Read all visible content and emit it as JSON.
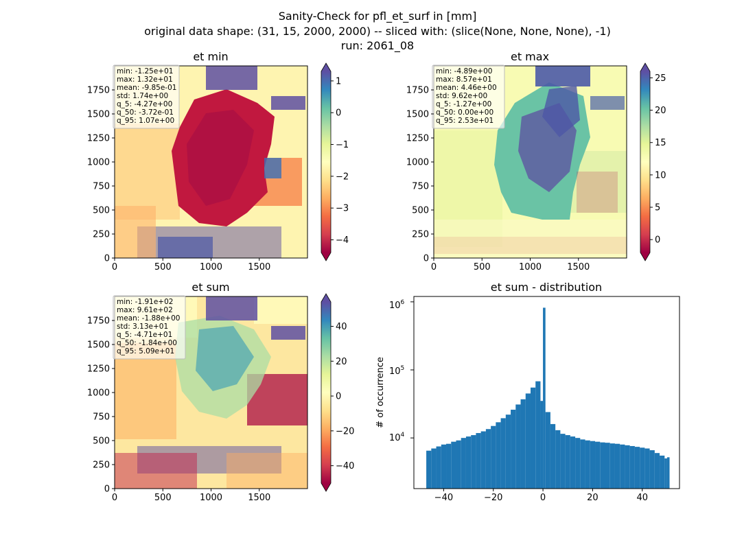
{
  "figure": {
    "suptitle_lines": [
      "Sanity-Check for pfl_et_surf in [mm]",
      "original data shape: (31, 15, 2000, 2000) -- sliced with: (slice(None, None, None), -1)",
      "run: 2061_08"
    ]
  },
  "panels": {
    "et_min": {
      "title": "et min",
      "stats": [
        "min: -1.25e+01",
        "max: 1.32e+01",
        "mean: -9.85e-01",
        "std: 1.74e+00",
        "q_5: -4.27e+00",
        "q_50: -3.72e-01",
        "q_95: 1.07e+00"
      ],
      "xticks": [
        "0",
        "500",
        "1000",
        "1500"
      ],
      "yticks": [
        "0",
        "250",
        "500",
        "750",
        "1000",
        "1250",
        "1500",
        "1750"
      ],
      "colorbar": {
        "min": -4.4,
        "max": 1.3,
        "ticks": [
          "1",
          "0",
          "−1",
          "−2",
          "−3",
          "−4"
        ],
        "tick_values": [
          1,
          0,
          -1,
          -2,
          -3,
          -4
        ]
      }
    },
    "et_max": {
      "title": "et max",
      "stats": [
        "min: -4.89e+00",
        "max: 8.57e+01",
        "mean: 4.46e+00",
        "std: 9.62e+00",
        "q_5: -1.27e+00",
        "q_50: 0.00e+00",
        "q_95: 2.53e+01"
      ],
      "xticks": [
        "0",
        "500",
        "1000",
        "1500"
      ],
      "yticks": [
        "0",
        "250",
        "500",
        "750",
        "1000",
        "1250",
        "1500",
        "1750"
      ],
      "colorbar": {
        "min": -2.0,
        "max": 26.0,
        "ticks": [
          "25",
          "20",
          "15",
          "10",
          "5",
          "0"
        ],
        "tick_values": [
          25,
          20,
          15,
          10,
          5,
          0
        ]
      }
    },
    "et_sum": {
      "title": "et sum",
      "stats": [
        "min: -1.91e+02",
        "max: 9.61e+02",
        "mean: -1.88e+00",
        "std: 3.13e+01",
        "q_5: -4.71e+01",
        "q_50: -1.84e+00",
        "q_95: 5.09e+01"
      ],
      "xticks": [
        "0",
        "500",
        "1000",
        "1500"
      ],
      "yticks": [
        "0",
        "250",
        "500",
        "750",
        "1000",
        "1250",
        "1500",
        "1750"
      ],
      "colorbar": {
        "min": -50,
        "max": 54,
        "ticks": [
          "40",
          "20",
          "0",
          "−20",
          "−40"
        ],
        "tick_values": [
          40,
          20,
          0,
          -20,
          -40
        ]
      }
    },
    "distribution": {
      "title": "et sum - distribution",
      "ylabel": "# of occurrence",
      "xticks": [
        "−40",
        "−20",
        "0",
        "20",
        "40"
      ],
      "ytick_labels": {
        "e4": "10",
        "e5": "10",
        "e6": "10",
        "e4_exp": "4",
        "e5_exp": "5",
        "e6_exp": "6"
      },
      "bar_color": "#1f77b4"
    }
  },
  "chart_data": [
    {
      "type": "heatmap",
      "title": "et min",
      "colormap": "Spectral",
      "xlim": [
        0,
        2000
      ],
      "ylim": [
        0,
        2000
      ],
      "color_range": [
        -4.4,
        1.3
      ]
    },
    {
      "type": "heatmap",
      "title": "et max",
      "colormap": "Spectral",
      "xlim": [
        0,
        2000
      ],
      "ylim": [
        0,
        2000
      ],
      "color_range": [
        -2.0,
        26.0
      ]
    },
    {
      "type": "heatmap",
      "title": "et sum",
      "colormap": "Spectral",
      "xlim": [
        0,
        2000
      ],
      "ylim": [
        0,
        2000
      ],
      "color_range": [
        -50,
        54
      ]
    },
    {
      "type": "bar",
      "title": "et sum - distribution",
      "ylabel": "# of occurrence",
      "y_scale": "log",
      "xlim": [
        -52,
        55
      ],
      "ylim": [
        1800,
        1200000
      ],
      "bins": [
        {
          "x": -47,
          "count": 6500
        },
        {
          "x": -45,
          "count": 7000
        },
        {
          "x": -43,
          "count": 7500
        },
        {
          "x": -41,
          "count": 8000
        },
        {
          "x": -39,
          "count": 8200
        },
        {
          "x": -37,
          "count": 8800
        },
        {
          "x": -35,
          "count": 9200
        },
        {
          "x": -33,
          "count": 10000
        },
        {
          "x": -31,
          "count": 10500
        },
        {
          "x": -29,
          "count": 11000
        },
        {
          "x": -27,
          "count": 11800
        },
        {
          "x": -25,
          "count": 12500
        },
        {
          "x": -23,
          "count": 13500
        },
        {
          "x": -21,
          "count": 15000
        },
        {
          "x": -19,
          "count": 17000
        },
        {
          "x": -17,
          "count": 19500
        },
        {
          "x": -15,
          "count": 22000
        },
        {
          "x": -13,
          "count": 26000
        },
        {
          "x": -11,
          "count": 31000
        },
        {
          "x": -9,
          "count": 37000
        },
        {
          "x": -7,
          "count": 45000
        },
        {
          "x": -5,
          "count": 55000
        },
        {
          "x": -3,
          "count": 68000
        },
        {
          "x": -1,
          "count": 35000
        },
        {
          "x": 0,
          "count": 820000
        },
        {
          "x": 1,
          "count": 24000
        },
        {
          "x": 3,
          "count": 16000
        },
        {
          "x": 5,
          "count": 13000
        },
        {
          "x": 7,
          "count": 11500
        },
        {
          "x": 9,
          "count": 11000
        },
        {
          "x": 11,
          "count": 10500
        },
        {
          "x": 13,
          "count": 10000
        },
        {
          "x": 15,
          "count": 9500
        },
        {
          "x": 17,
          "count": 9200
        },
        {
          "x": 19,
          "count": 9000
        },
        {
          "x": 21,
          "count": 8800
        },
        {
          "x": 23,
          "count": 8600
        },
        {
          "x": 25,
          "count": 8500
        },
        {
          "x": 27,
          "count": 8300
        },
        {
          "x": 29,
          "count": 8200
        },
        {
          "x": 31,
          "count": 8000
        },
        {
          "x": 33,
          "count": 7800
        },
        {
          "x": 35,
          "count": 7600
        },
        {
          "x": 37,
          "count": 7400
        },
        {
          "x": 39,
          "count": 7200
        },
        {
          "x": 41,
          "count": 7000
        },
        {
          "x": 43,
          "count": 6600
        },
        {
          "x": 45,
          "count": 6000
        },
        {
          "x": 47,
          "count": 5500
        },
        {
          "x": 49,
          "count": 5000
        },
        {
          "x": 50,
          "count": 5200
        }
      ]
    }
  ]
}
